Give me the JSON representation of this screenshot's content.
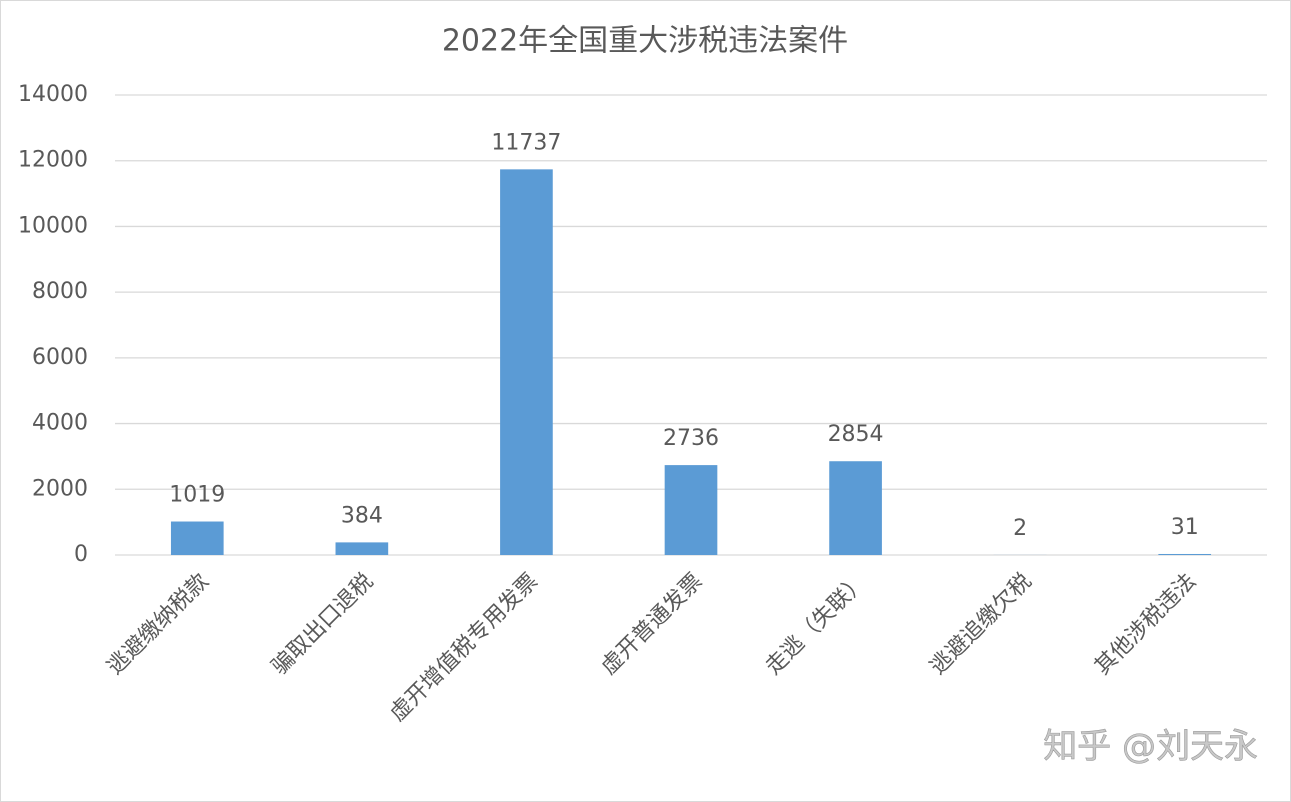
{
  "chart_data": {
    "type": "bar",
    "title": "2022年全国重大涉税违法案件",
    "categories": [
      "逃避缴纳税款",
      "骗取出口退税",
      "虚开增值税专用发票",
      "虚开普通发票",
      "走逃（失联）",
      "逃避追缴欠税",
      "其他涉税违法"
    ],
    "values": [
      1019,
      384,
      11737,
      2736,
      2854,
      2,
      31
    ],
    "color": "#5b9bd5",
    "ylim": [
      0,
      14000
    ],
    "yticks": [
      0,
      2000,
      4000,
      6000,
      8000,
      10000,
      12000,
      14000
    ],
    "grid": true,
    "watermark": "知乎 @刘天永"
  }
}
